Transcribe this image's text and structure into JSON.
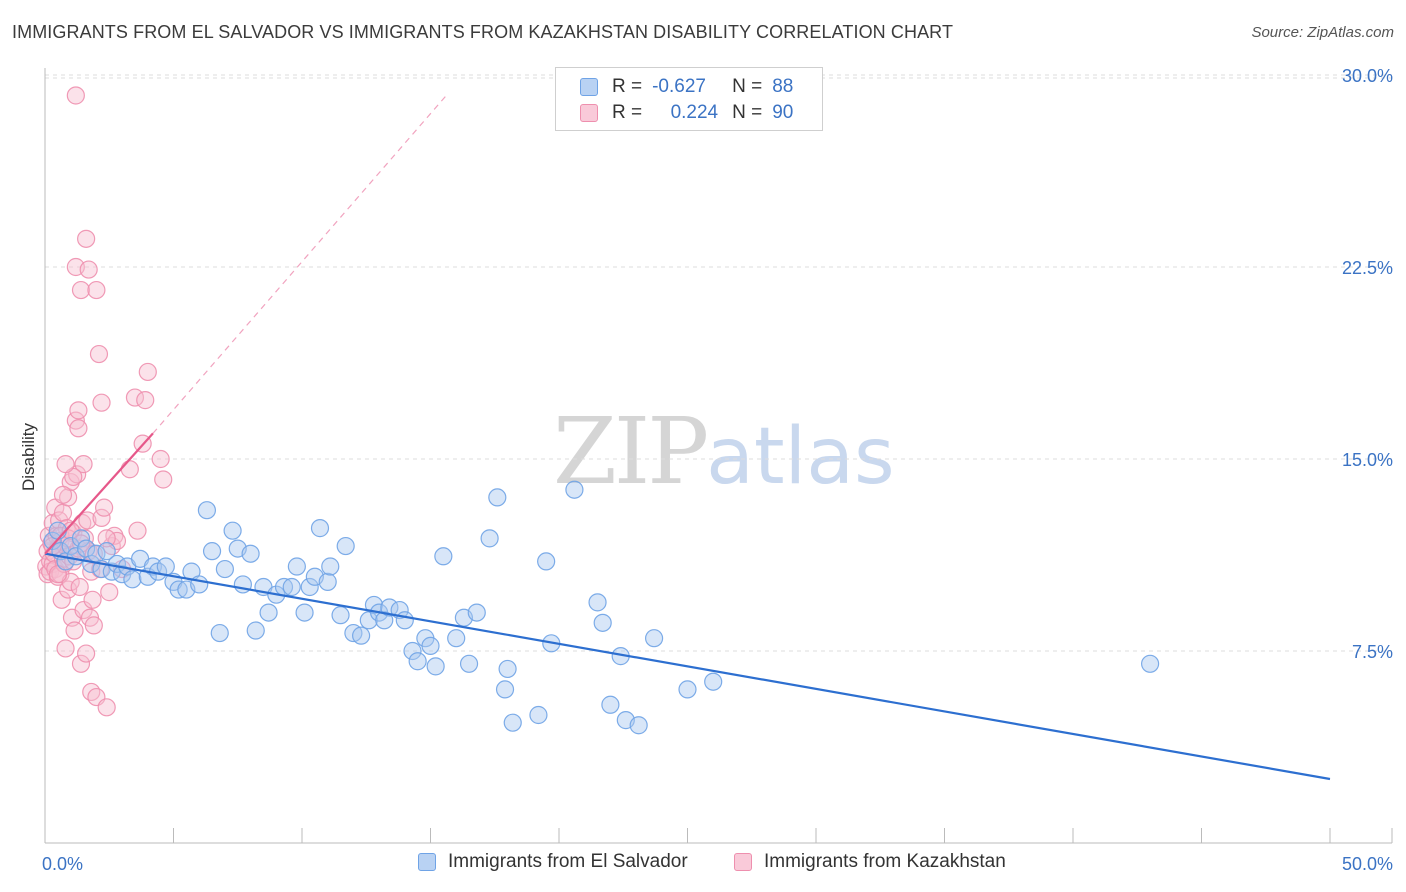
{
  "title": "IMMIGRANTS FROM EL SALVADOR VS IMMIGRANTS FROM KAZAKHSTAN DISABILITY CORRELATION CHART",
  "source": "Source: ZipAtlas.com",
  "watermark": {
    "zip": "ZIP",
    "atlas": "atlas"
  },
  "legend": {
    "rows": [
      {
        "r_label": "R =",
        "r_value": "-0.627",
        "n_label": "N =",
        "n_value": "88"
      },
      {
        "r_label": "R =",
        "r_value": "0.224",
        "n_label": "N =",
        "n_value": "90"
      }
    ]
  },
  "colors": {
    "blue": "#6fa3e6",
    "blue_line": "#2d6fd0",
    "blue_fill": "#a9c8f0",
    "pink": "#ee8fae",
    "pink_line": "#e6588a",
    "pink_fill": "#f6bfd1",
    "tick_text": "#3b73c4",
    "grid": "#dddddd"
  },
  "chart_data": {
    "type": "scatter",
    "title": "IMMIGRANTS FROM EL SALVADOR VS IMMIGRANTS FROM KAZAKHSTAN DISABILITY CORRELATION CHART",
    "xlabel": "",
    "ylabel": "Disability",
    "xlim": [
      0,
      50
    ],
    "ylim": [
      0,
      31
    ],
    "x_tick_labels": [
      "0.0%",
      "50.0%"
    ],
    "y_ticks": [
      7.5,
      15.0,
      22.5,
      30.0
    ],
    "y_tick_labels": [
      "7.5%",
      "15.0%",
      "22.5%",
      "30.0%"
    ],
    "grid": "horizontal dashed",
    "legend_position": "top-center",
    "series": [
      {
        "name": "Immigrants from El Salvador",
        "R": -0.627,
        "N": 88,
        "trend": {
          "x0": 0,
          "y0": 11.3,
          "x1": 50,
          "y1": 2.5
        },
        "points": [
          [
            0.3,
            11.8
          ],
          [
            0.5,
            12.2
          ],
          [
            0.6,
            11.4
          ],
          [
            0.8,
            11.0
          ],
          [
            1.0,
            11.6
          ],
          [
            1.2,
            11.2
          ],
          [
            1.4,
            11.9
          ],
          [
            1.6,
            11.5
          ],
          [
            1.8,
            10.9
          ],
          [
            2.0,
            11.3
          ],
          [
            2.2,
            10.7
          ],
          [
            2.4,
            11.4
          ],
          [
            2.6,
            10.6
          ],
          [
            2.8,
            10.9
          ],
          [
            3.0,
            10.5
          ],
          [
            3.2,
            10.8
          ],
          [
            3.4,
            10.3
          ],
          [
            3.7,
            11.1
          ],
          [
            4.0,
            10.4
          ],
          [
            4.2,
            10.8
          ],
          [
            4.4,
            10.6
          ],
          [
            4.7,
            10.8
          ],
          [
            5.0,
            10.2
          ],
          [
            5.2,
            9.9
          ],
          [
            5.5,
            9.9
          ],
          [
            5.7,
            10.6
          ],
          [
            6.0,
            10.1
          ],
          [
            6.3,
            13.0
          ],
          [
            6.5,
            11.4
          ],
          [
            6.8,
            8.2
          ],
          [
            7.0,
            10.7
          ],
          [
            7.3,
            12.2
          ],
          [
            7.5,
            11.5
          ],
          [
            7.7,
            10.1
          ],
          [
            8.0,
            11.3
          ],
          [
            8.2,
            8.3
          ],
          [
            8.5,
            10.0
          ],
          [
            8.7,
            9.0
          ],
          [
            9.0,
            9.7
          ],
          [
            9.3,
            10.0
          ],
          [
            9.6,
            10.0
          ],
          [
            9.8,
            10.8
          ],
          [
            10.1,
            9.0
          ],
          [
            10.3,
            10.0
          ],
          [
            10.5,
            10.4
          ],
          [
            10.7,
            12.3
          ],
          [
            11.0,
            10.2
          ],
          [
            11.1,
            10.8
          ],
          [
            11.5,
            8.9
          ],
          [
            11.7,
            11.6
          ],
          [
            12.0,
            8.2
          ],
          [
            12.3,
            8.1
          ],
          [
            12.6,
            8.7
          ],
          [
            12.8,
            9.3
          ],
          [
            13.0,
            9.0
          ],
          [
            13.2,
            8.7
          ],
          [
            13.4,
            9.2
          ],
          [
            13.8,
            9.1
          ],
          [
            14.0,
            8.7
          ],
          [
            14.3,
            7.5
          ],
          [
            14.5,
            7.1
          ],
          [
            14.8,
            8.0
          ],
          [
            15.0,
            7.7
          ],
          [
            15.2,
            6.9
          ],
          [
            15.5,
            11.2
          ],
          [
            16.0,
            8.0
          ],
          [
            16.3,
            8.8
          ],
          [
            16.5,
            7.0
          ],
          [
            16.8,
            9.0
          ],
          [
            17.3,
            11.9
          ],
          [
            17.6,
            13.5
          ],
          [
            17.9,
            6.0
          ],
          [
            18.0,
            6.8
          ],
          [
            18.2,
            4.7
          ],
          [
            19.2,
            5.0
          ],
          [
            19.5,
            11.0
          ],
          [
            19.7,
            7.8
          ],
          [
            20.6,
            13.8
          ],
          [
            21.5,
            9.4
          ],
          [
            21.7,
            8.6
          ],
          [
            22.0,
            5.4
          ],
          [
            22.4,
            7.3
          ],
          [
            22.6,
            4.8
          ],
          [
            23.1,
            4.6
          ],
          [
            23.7,
            8.0
          ],
          [
            25.0,
            6.0
          ],
          [
            26.0,
            6.3
          ],
          [
            43.0,
            7.0
          ]
        ]
      },
      {
        "name": "Immigrants from Kazakhstan",
        "R": 0.224,
        "N": 90,
        "trend": {
          "x0": 0,
          "y0": 11.3,
          "x1": 4.2,
          "y1": 16.0
        },
        "trend_ext": {
          "x0": 4.2,
          "y0": 16.0,
          "x1": 15.7,
          "y1": 29.3
        },
        "points": [
          [
            0.05,
            10.8
          ],
          [
            0.1,
            11.4
          ],
          [
            0.1,
            10.5
          ],
          [
            0.15,
            12.0
          ],
          [
            0.2,
            11.0
          ],
          [
            0.2,
            10.6
          ],
          [
            0.25,
            11.7
          ],
          [
            0.3,
            12.5
          ],
          [
            0.3,
            10.9
          ],
          [
            0.35,
            11.3
          ],
          [
            0.4,
            13.1
          ],
          [
            0.4,
            10.7
          ],
          [
            0.45,
            12.0
          ],
          [
            0.5,
            11.5
          ],
          [
            0.5,
            10.4
          ],
          [
            0.55,
            12.6
          ],
          [
            0.6,
            11.8
          ],
          [
            0.6,
            10.5
          ],
          [
            0.65,
            9.5
          ],
          [
            0.7,
            11.1
          ],
          [
            0.7,
            12.9
          ],
          [
            0.75,
            10.9
          ],
          [
            0.8,
            11.6
          ],
          [
            0.8,
            7.6
          ],
          [
            0.85,
            12.3
          ],
          [
            0.9,
            9.9
          ],
          [
            0.9,
            13.5
          ],
          [
            0.95,
            11.2
          ],
          [
            1.0,
            14.1
          ],
          [
            1.0,
            10.2
          ],
          [
            1.05,
            8.8
          ],
          [
            1.1,
            12.1
          ],
          [
            1.1,
            11.0
          ],
          [
            1.15,
            8.3
          ],
          [
            1.2,
            22.5
          ],
          [
            1.2,
            16.5
          ],
          [
            1.25,
            14.4
          ],
          [
            1.3,
            16.2
          ],
          [
            1.3,
            11.5
          ],
          [
            1.35,
            10.0
          ],
          [
            1.4,
            7.0
          ],
          [
            1.4,
            21.6
          ],
          [
            1.45,
            12.5
          ],
          [
            1.5,
            14.8
          ],
          [
            1.5,
            9.1
          ],
          [
            1.55,
            11.9
          ],
          [
            1.6,
            7.4
          ],
          [
            1.6,
            23.6
          ],
          [
            1.65,
            12.6
          ],
          [
            1.7,
            11.4
          ],
          [
            1.75,
            8.8
          ],
          [
            1.8,
            10.6
          ],
          [
            1.8,
            5.9
          ],
          [
            1.85,
            9.5
          ],
          [
            1.9,
            8.5
          ],
          [
            1.9,
            11.3
          ],
          [
            2.0,
            21.6
          ],
          [
            2.0,
            5.7
          ],
          [
            2.1,
            19.1
          ],
          [
            2.15,
            10.7
          ],
          [
            2.2,
            12.7
          ],
          [
            2.3,
            13.1
          ],
          [
            2.4,
            5.3
          ],
          [
            2.5,
            9.8
          ],
          [
            2.6,
            11.6
          ],
          [
            2.7,
            12.0
          ],
          [
            2.8,
            11.8
          ],
          [
            1.2,
            29.2
          ],
          [
            1.7,
            22.4
          ],
          [
            3.0,
            10.7
          ],
          [
            3.3,
            14.6
          ],
          [
            3.5,
            17.4
          ],
          [
            3.6,
            12.2
          ],
          [
            3.8,
            15.6
          ],
          [
            4.0,
            18.4
          ],
          [
            4.5,
            15.0
          ],
          [
            4.6,
            14.2
          ],
          [
            3.9,
            17.3
          ],
          [
            0.6,
            12.0
          ],
          [
            0.9,
            11.9
          ],
          [
            1.0,
            12.2
          ],
          [
            1.4,
            11.7
          ],
          [
            1.1,
            14.3
          ],
          [
            1.3,
            16.9
          ],
          [
            0.5,
            10.5
          ],
          [
            0.7,
            13.6
          ],
          [
            0.8,
            14.8
          ],
          [
            2.2,
            17.2
          ],
          [
            2.4,
            11.9
          ],
          [
            0.3,
            11.6
          ]
        ]
      }
    ]
  }
}
